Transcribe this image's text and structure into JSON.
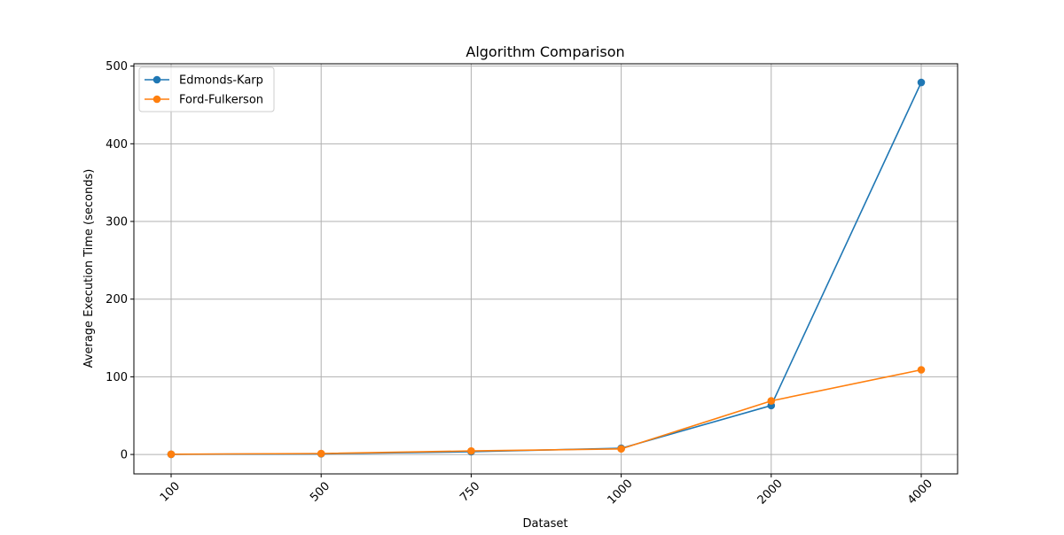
{
  "chart_data": {
    "type": "line",
    "title": "Algorithm Comparison",
    "xlabel": "Dataset",
    "ylabel": "Average Execution Time (seconds)",
    "categories": [
      "100",
      "500",
      "750",
      "1000",
      "2000",
      "4000"
    ],
    "ylim": [
      -25,
      503
    ],
    "yticks": [
      0,
      100,
      200,
      300,
      400,
      500
    ],
    "grid": true,
    "legend_position": "top-left",
    "series": [
      {
        "name": "Edmonds-Karp",
        "color": "#1f77b4",
        "marker": "circle",
        "values": [
          0.2,
          0.8,
          3.5,
          8.0,
          63.0,
          479.0
        ]
      },
      {
        "name": "Ford-Fulkerson",
        "color": "#ff7f0e",
        "marker": "circle",
        "values": [
          0.3,
          1.2,
          4.5,
          7.2,
          69.0,
          109.0
        ]
      }
    ]
  }
}
